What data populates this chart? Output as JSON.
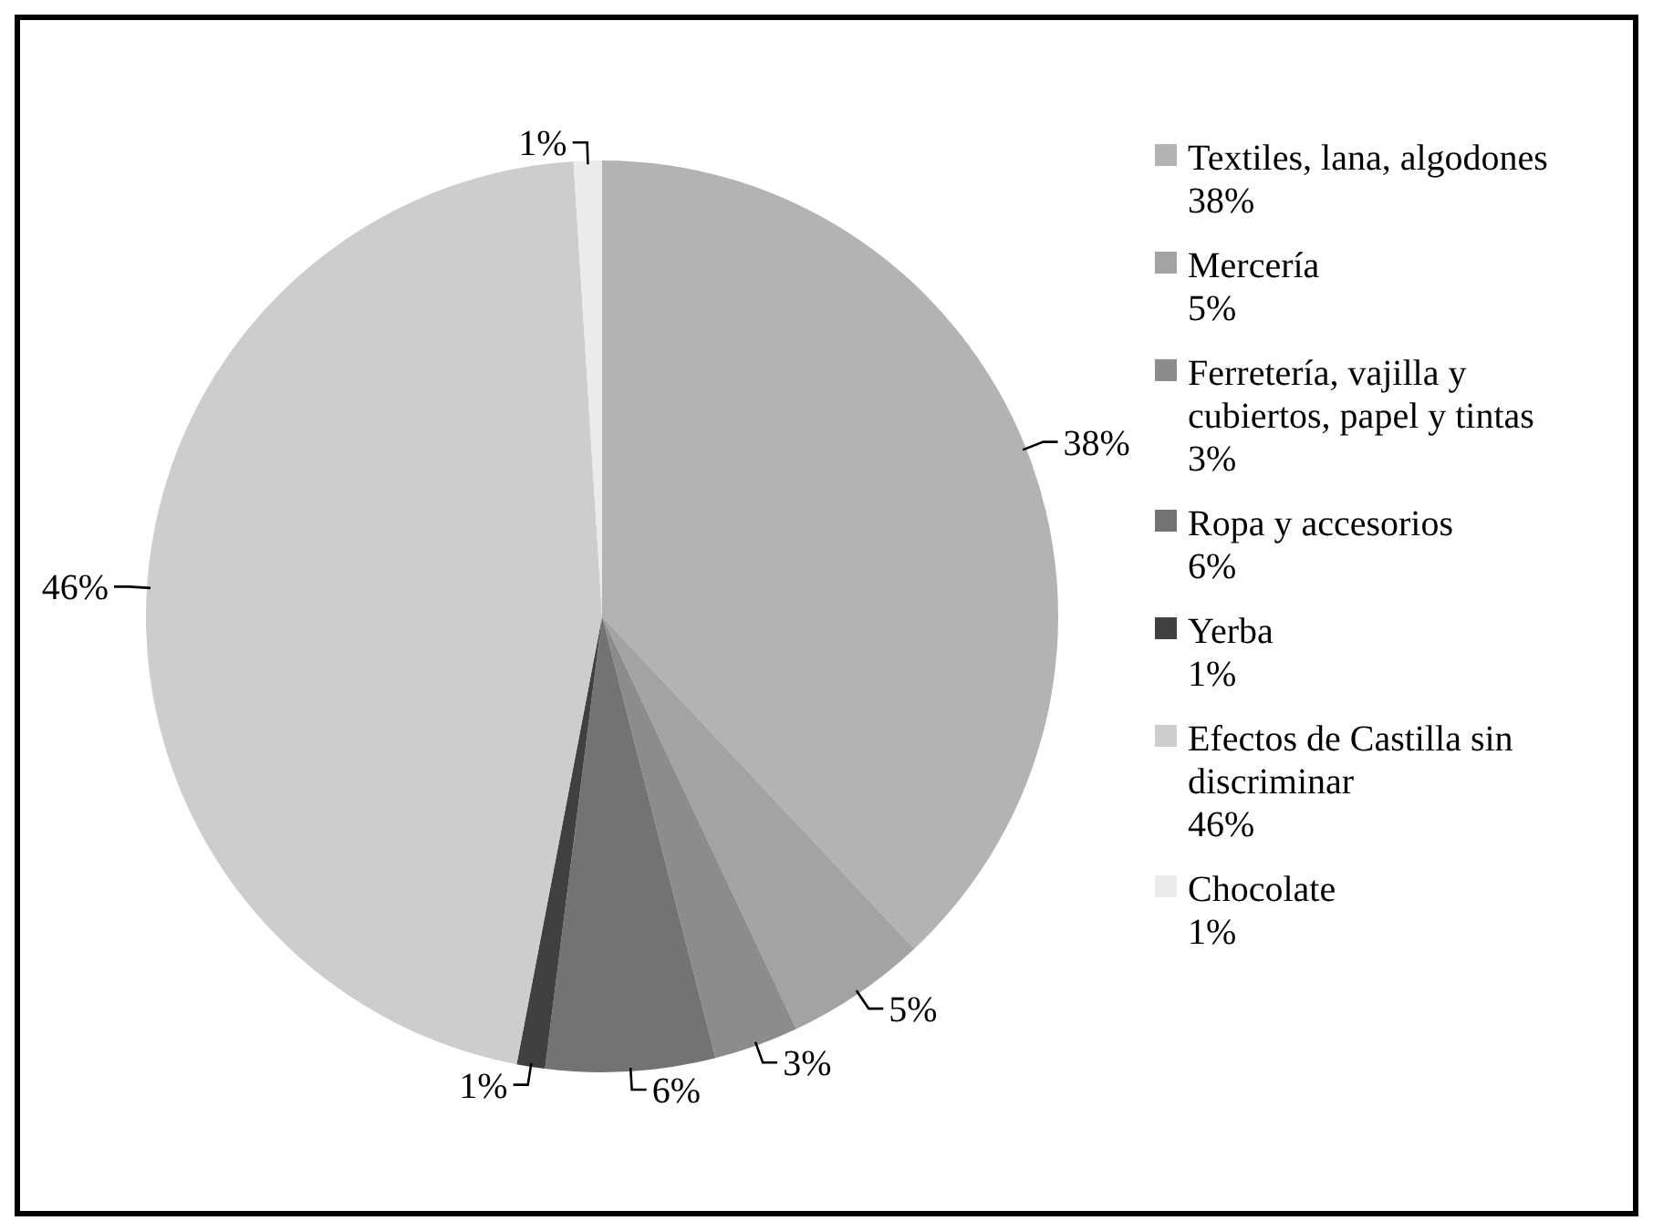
{
  "chart_data": {
    "type": "pie",
    "categories": [
      "Textiles, lana, algodones",
      "Mercería",
      "Ferretería, vajilla y cubiertos, papel y tintas",
      "Ropa y accesorios",
      "Yerba",
      "Efectos de Castilla sin discriminar",
      "Chocolate"
    ],
    "values": [
      38,
      5,
      3,
      6,
      1,
      46,
      1
    ],
    "value_labels": [
      "38%",
      "5%",
      "3%",
      "6%",
      "1%",
      "46%",
      "1%"
    ],
    "colors": [
      "#b3b3b3",
      "#a3a3a3",
      "#8c8c8c",
      "#737373",
      "#404040",
      "#cdcdcd",
      "#ebebeb"
    ],
    "legend": "right"
  }
}
